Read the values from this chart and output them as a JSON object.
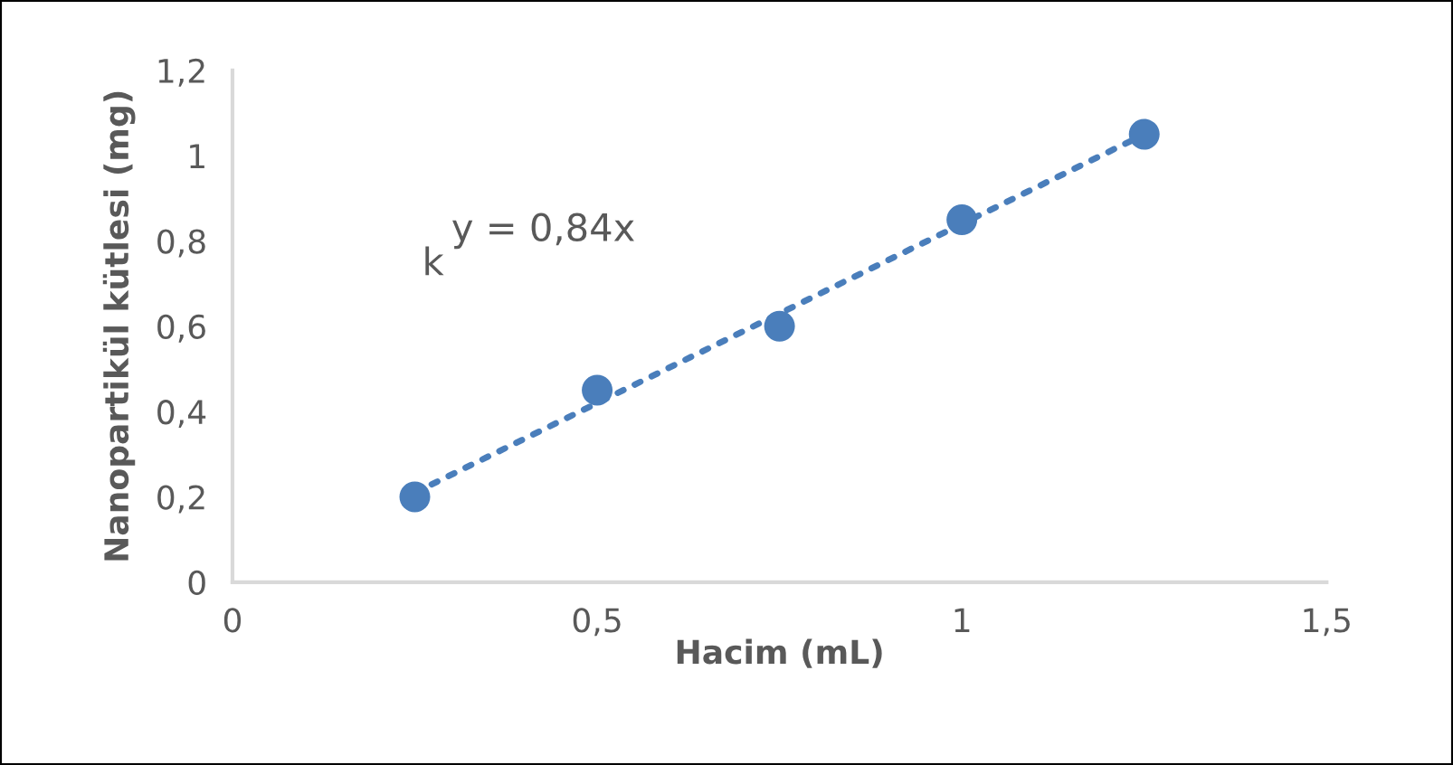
{
  "chart_data": {
    "type": "scatter",
    "xlabel": "Hacim (mL)",
    "ylabel": "Nanopartikül kütlesi (mg)",
    "x": [
      0.25,
      0.5,
      0.75,
      1,
      1.25
    ],
    "series": [
      {
        "color": "#4a7ebb",
        "values": [
          0.2,
          0.45,
          0.6,
          0.85,
          1.05
        ],
        "marker": "circle"
      },
      {
        "type": "line",
        "color": "#4a7ebb",
        "x": [
          0.25,
          1.25
        ],
        "values": [
          0.21,
          1.05
        ],
        "line_style": "dotted",
        "marker": "none"
      }
    ],
    "xlim": [
      0,
      1.5
    ],
    "xticks": [
      0,
      {
        "value": 0.5,
        "label": "0,5"
      },
      1,
      {
        "value": 1.5,
        "label": "1,5"
      }
    ],
    "ylim": [
      0,
      1.2
    ],
    "yticks": [
      0,
      {
        "value": 0.2,
        "label": "0,2"
      },
      {
        "value": 0.4,
        "label": "0,4"
      },
      {
        "value": 0.6,
        "label": "0,6"
      },
      {
        "value": 0.8,
        "label": "0,8"
      },
      1,
      {
        "value": 1.2,
        "label": "1,2"
      }
    ],
    "grid": false,
    "legend": false,
    "annotations": [
      "y = 0,84x",
      "k"
    ]
  }
}
